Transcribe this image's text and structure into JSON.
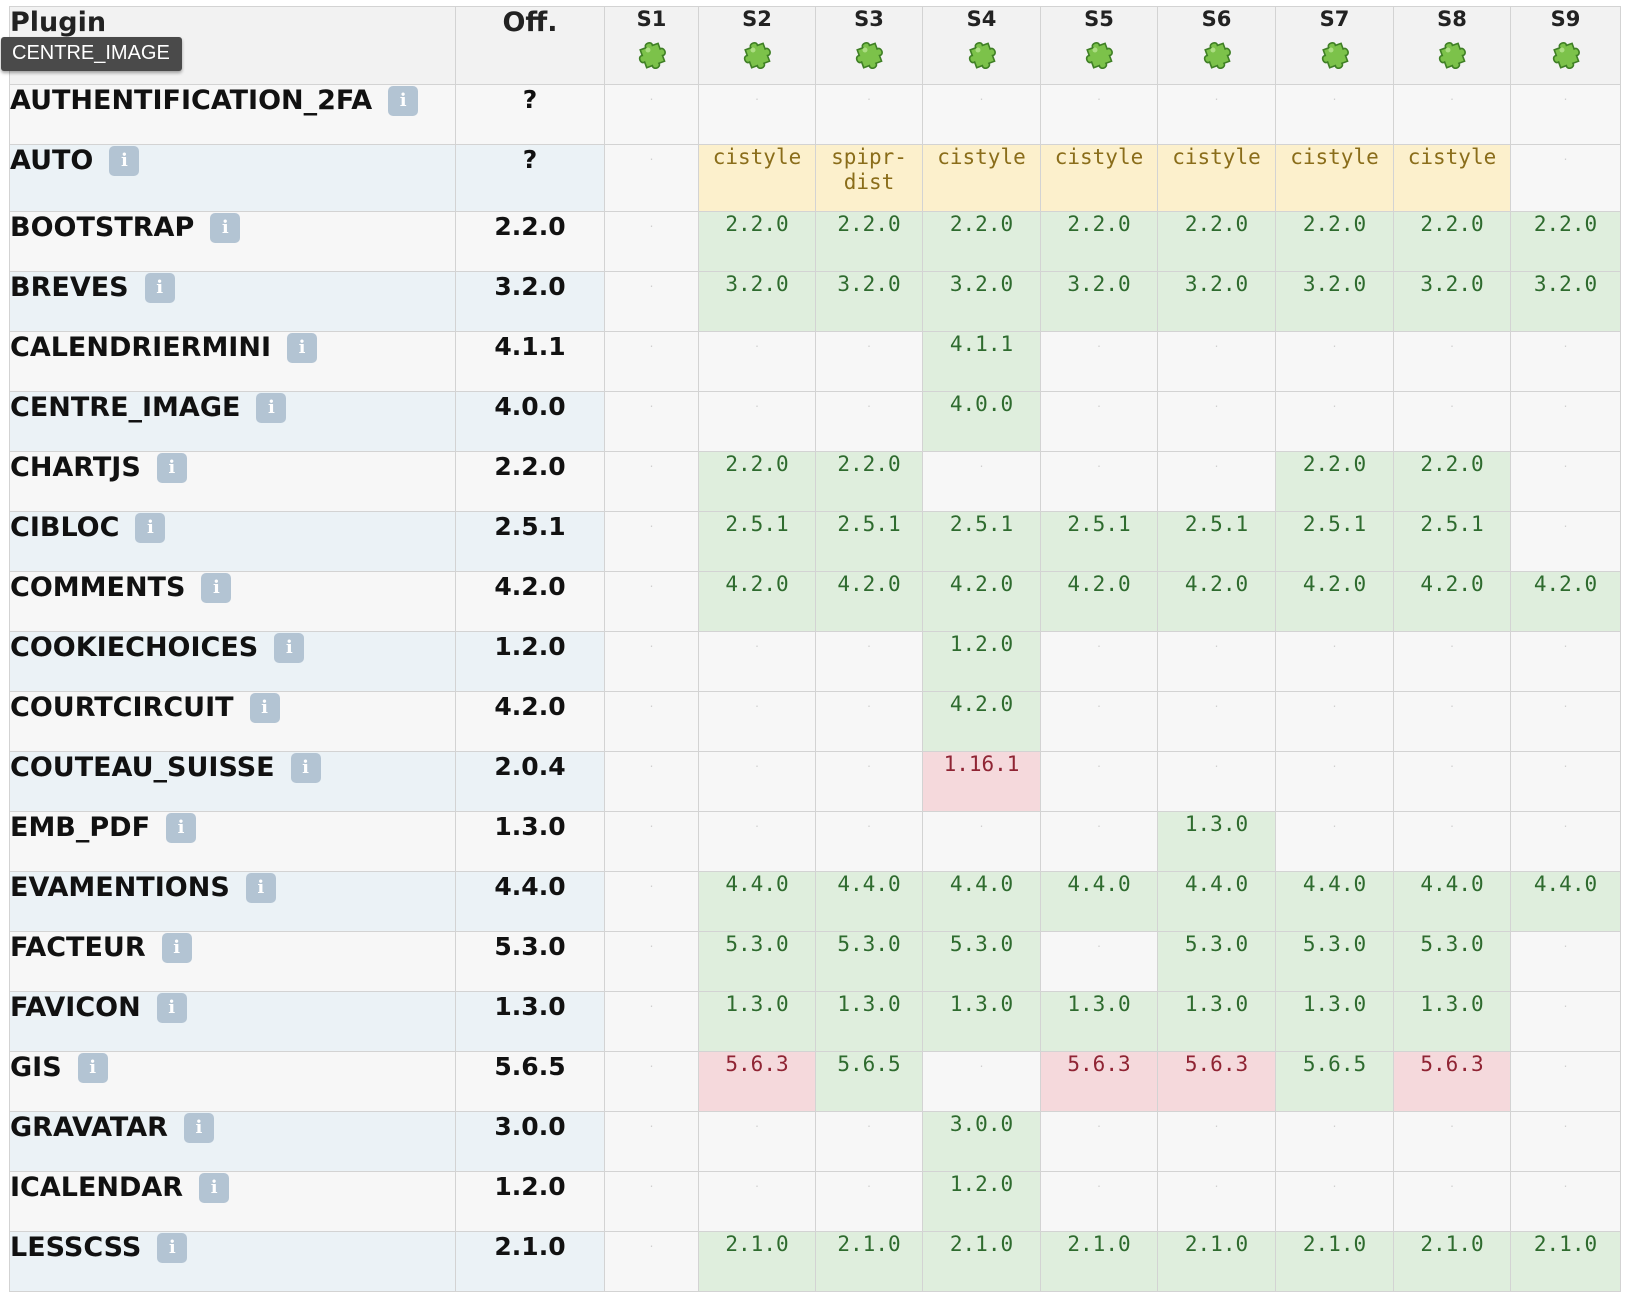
{
  "tooltip": "CENTRE_IMAGE",
  "header": {
    "plugin": "Plugin",
    "official": "Off.",
    "sites": [
      "S1",
      "S2",
      "S3",
      "S4",
      "S5",
      "S6",
      "S7",
      "S8",
      "S9"
    ],
    "site_icon": "puzzle-icon"
  },
  "info_icon": "i",
  "colors": {
    "up_to_date": "#dfeedd",
    "outdated": "#f5d9dc",
    "dist": "#fcf0cc",
    "even_row": "#ebf2f6",
    "tooltip_bg": "#4a4a4a"
  },
  "rows": [
    {
      "name": "AUTHENTIFICATION_2FA",
      "off": "?",
      "sites": [
        {
          "v": ".",
          "s": "empty"
        },
        {
          "v": ".",
          "s": "empty"
        },
        {
          "v": ".",
          "s": "empty"
        },
        {
          "v": ".",
          "s": "empty"
        },
        {
          "v": ".",
          "s": "empty"
        },
        {
          "v": ".",
          "s": "empty"
        },
        {
          "v": ".",
          "s": "empty"
        },
        {
          "v": ".",
          "s": "empty"
        },
        {
          "v": ".",
          "s": "empty"
        }
      ]
    },
    {
      "name": "AUTO",
      "off": "?",
      "sites": [
        {
          "v": ".",
          "s": "empty"
        },
        {
          "v": "cistyle",
          "s": "info"
        },
        {
          "v": "spipr-dist",
          "s": "info"
        },
        {
          "v": "cistyle",
          "s": "info"
        },
        {
          "v": "cistyle",
          "s": "info"
        },
        {
          "v": "cistyle",
          "s": "info"
        },
        {
          "v": "cistyle",
          "s": "info"
        },
        {
          "v": "cistyle",
          "s": "info"
        },
        {
          "v": ".",
          "s": "empty"
        }
      ]
    },
    {
      "name": "BOOTSTRAP",
      "off": "2.2.0",
      "sites": [
        {
          "v": ".",
          "s": "empty"
        },
        {
          "v": "2.2.0",
          "s": "ok"
        },
        {
          "v": "2.2.0",
          "s": "ok"
        },
        {
          "v": "2.2.0",
          "s": "ok"
        },
        {
          "v": "2.2.0",
          "s": "ok"
        },
        {
          "v": "2.2.0",
          "s": "ok"
        },
        {
          "v": "2.2.0",
          "s": "ok"
        },
        {
          "v": "2.2.0",
          "s": "ok"
        },
        {
          "v": "2.2.0",
          "s": "ok"
        }
      ]
    },
    {
      "name": "BREVES",
      "off": "3.2.0",
      "sites": [
        {
          "v": ".",
          "s": "empty"
        },
        {
          "v": "3.2.0",
          "s": "ok"
        },
        {
          "v": "3.2.0",
          "s": "ok"
        },
        {
          "v": "3.2.0",
          "s": "ok"
        },
        {
          "v": "3.2.0",
          "s": "ok"
        },
        {
          "v": "3.2.0",
          "s": "ok"
        },
        {
          "v": "3.2.0",
          "s": "ok"
        },
        {
          "v": "3.2.0",
          "s": "ok"
        },
        {
          "v": "3.2.0",
          "s": "ok"
        }
      ]
    },
    {
      "name": "CALENDRIERMINI",
      "off": "4.1.1",
      "sites": [
        {
          "v": ".",
          "s": "empty"
        },
        {
          "v": ".",
          "s": "empty"
        },
        {
          "v": ".",
          "s": "empty"
        },
        {
          "v": "4.1.1",
          "s": "ok"
        },
        {
          "v": ".",
          "s": "empty"
        },
        {
          "v": ".",
          "s": "empty"
        },
        {
          "v": ".",
          "s": "empty"
        },
        {
          "v": ".",
          "s": "empty"
        },
        {
          "v": ".",
          "s": "empty"
        }
      ]
    },
    {
      "name": "CENTRE_IMAGE",
      "off": "4.0.0",
      "sites": [
        {
          "v": ".",
          "s": "empty"
        },
        {
          "v": ".",
          "s": "empty"
        },
        {
          "v": ".",
          "s": "empty"
        },
        {
          "v": "4.0.0",
          "s": "ok"
        },
        {
          "v": ".",
          "s": "empty"
        },
        {
          "v": ".",
          "s": "empty"
        },
        {
          "v": ".",
          "s": "empty"
        },
        {
          "v": ".",
          "s": "empty"
        },
        {
          "v": ".",
          "s": "empty"
        }
      ]
    },
    {
      "name": "CHARTJS",
      "off": "2.2.0",
      "sites": [
        {
          "v": ".",
          "s": "empty"
        },
        {
          "v": "2.2.0",
          "s": "ok"
        },
        {
          "v": "2.2.0",
          "s": "ok"
        },
        {
          "v": ".",
          "s": "empty"
        },
        {
          "v": ".",
          "s": "empty"
        },
        {
          "v": ".",
          "s": "empty"
        },
        {
          "v": "2.2.0",
          "s": "ok"
        },
        {
          "v": "2.2.0",
          "s": "ok"
        },
        {
          "v": ".",
          "s": "empty"
        }
      ]
    },
    {
      "name": "CIBLOC",
      "off": "2.5.1",
      "sites": [
        {
          "v": ".",
          "s": "empty"
        },
        {
          "v": "2.5.1",
          "s": "ok"
        },
        {
          "v": "2.5.1",
          "s": "ok"
        },
        {
          "v": "2.5.1",
          "s": "ok"
        },
        {
          "v": "2.5.1",
          "s": "ok"
        },
        {
          "v": "2.5.1",
          "s": "ok"
        },
        {
          "v": "2.5.1",
          "s": "ok"
        },
        {
          "v": "2.5.1",
          "s": "ok"
        },
        {
          "v": ".",
          "s": "empty"
        }
      ]
    },
    {
      "name": "COMMENTS",
      "off": "4.2.0",
      "sites": [
        {
          "v": ".",
          "s": "empty"
        },
        {
          "v": "4.2.0",
          "s": "ok"
        },
        {
          "v": "4.2.0",
          "s": "ok"
        },
        {
          "v": "4.2.0",
          "s": "ok"
        },
        {
          "v": "4.2.0",
          "s": "ok"
        },
        {
          "v": "4.2.0",
          "s": "ok"
        },
        {
          "v": "4.2.0",
          "s": "ok"
        },
        {
          "v": "4.2.0",
          "s": "ok"
        },
        {
          "v": "4.2.0",
          "s": "ok"
        }
      ]
    },
    {
      "name": "COOKIECHOICES",
      "off": "1.2.0",
      "sites": [
        {
          "v": ".",
          "s": "empty"
        },
        {
          "v": ".",
          "s": "empty"
        },
        {
          "v": ".",
          "s": "empty"
        },
        {
          "v": "1.2.0",
          "s": "ok"
        },
        {
          "v": ".",
          "s": "empty"
        },
        {
          "v": ".",
          "s": "empty"
        },
        {
          "v": ".",
          "s": "empty"
        },
        {
          "v": ".",
          "s": "empty"
        },
        {
          "v": ".",
          "s": "empty"
        }
      ]
    },
    {
      "name": "COURTCIRCUIT",
      "off": "4.2.0",
      "sites": [
        {
          "v": ".",
          "s": "empty"
        },
        {
          "v": ".",
          "s": "empty"
        },
        {
          "v": ".",
          "s": "empty"
        },
        {
          "v": "4.2.0",
          "s": "ok"
        },
        {
          "v": ".",
          "s": "empty"
        },
        {
          "v": ".",
          "s": "empty"
        },
        {
          "v": ".",
          "s": "empty"
        },
        {
          "v": ".",
          "s": "empty"
        },
        {
          "v": ".",
          "s": "empty"
        }
      ]
    },
    {
      "name": "COUTEAU_SUISSE",
      "off": "2.0.4",
      "sites": [
        {
          "v": ".",
          "s": "empty"
        },
        {
          "v": ".",
          "s": "empty"
        },
        {
          "v": ".",
          "s": "empty"
        },
        {
          "v": "1.16.1",
          "s": "old"
        },
        {
          "v": ".",
          "s": "empty"
        },
        {
          "v": ".",
          "s": "empty"
        },
        {
          "v": ".",
          "s": "empty"
        },
        {
          "v": ".",
          "s": "empty"
        },
        {
          "v": ".",
          "s": "empty"
        }
      ]
    },
    {
      "name": "EMB_PDF",
      "off": "1.3.0",
      "sites": [
        {
          "v": ".",
          "s": "empty"
        },
        {
          "v": ".",
          "s": "empty"
        },
        {
          "v": ".",
          "s": "empty"
        },
        {
          "v": ".",
          "s": "empty"
        },
        {
          "v": ".",
          "s": "empty"
        },
        {
          "v": "1.3.0",
          "s": "ok"
        },
        {
          "v": ".",
          "s": "empty"
        },
        {
          "v": ".",
          "s": "empty"
        },
        {
          "v": ".",
          "s": "empty"
        }
      ]
    },
    {
      "name": "EVAMENTIONS",
      "off": "4.4.0",
      "sites": [
        {
          "v": ".",
          "s": "empty"
        },
        {
          "v": "4.4.0",
          "s": "ok"
        },
        {
          "v": "4.4.0",
          "s": "ok"
        },
        {
          "v": "4.4.0",
          "s": "ok"
        },
        {
          "v": "4.4.0",
          "s": "ok"
        },
        {
          "v": "4.4.0",
          "s": "ok"
        },
        {
          "v": "4.4.0",
          "s": "ok"
        },
        {
          "v": "4.4.0",
          "s": "ok"
        },
        {
          "v": "4.4.0",
          "s": "ok"
        }
      ]
    },
    {
      "name": "FACTEUR",
      "off": "5.3.0",
      "sites": [
        {
          "v": ".",
          "s": "empty"
        },
        {
          "v": "5.3.0",
          "s": "ok"
        },
        {
          "v": "5.3.0",
          "s": "ok"
        },
        {
          "v": "5.3.0",
          "s": "ok"
        },
        {
          "v": ".",
          "s": "empty"
        },
        {
          "v": "5.3.0",
          "s": "ok"
        },
        {
          "v": "5.3.0",
          "s": "ok"
        },
        {
          "v": "5.3.0",
          "s": "ok"
        },
        {
          "v": ".",
          "s": "empty"
        }
      ]
    },
    {
      "name": "FAVICON",
      "off": "1.3.0",
      "sites": [
        {
          "v": ".",
          "s": "empty"
        },
        {
          "v": "1.3.0",
          "s": "ok"
        },
        {
          "v": "1.3.0",
          "s": "ok"
        },
        {
          "v": "1.3.0",
          "s": "ok"
        },
        {
          "v": "1.3.0",
          "s": "ok"
        },
        {
          "v": "1.3.0",
          "s": "ok"
        },
        {
          "v": "1.3.0",
          "s": "ok"
        },
        {
          "v": "1.3.0",
          "s": "ok"
        },
        {
          "v": ".",
          "s": "empty"
        }
      ]
    },
    {
      "name": "GIS",
      "off": "5.6.5",
      "sites": [
        {
          "v": ".",
          "s": "empty"
        },
        {
          "v": "5.6.3",
          "s": "old"
        },
        {
          "v": "5.6.5",
          "s": "ok"
        },
        {
          "v": ".",
          "s": "empty"
        },
        {
          "v": "5.6.3",
          "s": "old"
        },
        {
          "v": "5.6.3",
          "s": "old"
        },
        {
          "v": "5.6.5",
          "s": "ok"
        },
        {
          "v": "5.6.3",
          "s": "old"
        },
        {
          "v": ".",
          "s": "empty"
        }
      ]
    },
    {
      "name": "GRAVATAR",
      "off": "3.0.0",
      "sites": [
        {
          "v": ".",
          "s": "empty"
        },
        {
          "v": ".",
          "s": "empty"
        },
        {
          "v": ".",
          "s": "empty"
        },
        {
          "v": "3.0.0",
          "s": "ok"
        },
        {
          "v": ".",
          "s": "empty"
        },
        {
          "v": ".",
          "s": "empty"
        },
        {
          "v": ".",
          "s": "empty"
        },
        {
          "v": ".",
          "s": "empty"
        },
        {
          "v": ".",
          "s": "empty"
        }
      ]
    },
    {
      "name": "ICALENDAR",
      "off": "1.2.0",
      "sites": [
        {
          "v": ".",
          "s": "empty"
        },
        {
          "v": ".",
          "s": "empty"
        },
        {
          "v": ".",
          "s": "empty"
        },
        {
          "v": "1.2.0",
          "s": "ok"
        },
        {
          "v": ".",
          "s": "empty"
        },
        {
          "v": ".",
          "s": "empty"
        },
        {
          "v": ".",
          "s": "empty"
        },
        {
          "v": ".",
          "s": "empty"
        },
        {
          "v": ".",
          "s": "empty"
        }
      ]
    },
    {
      "name": "LESSCSS",
      "off": "2.1.0",
      "sites": [
        {
          "v": ".",
          "s": "empty"
        },
        {
          "v": "2.1.0",
          "s": "ok"
        },
        {
          "v": "2.1.0",
          "s": "ok"
        },
        {
          "v": "2.1.0",
          "s": "ok"
        },
        {
          "v": "2.1.0",
          "s": "ok"
        },
        {
          "v": "2.1.0",
          "s": "ok"
        },
        {
          "v": "2.1.0",
          "s": "ok"
        },
        {
          "v": "2.1.0",
          "s": "ok"
        },
        {
          "v": "2.1.0",
          "s": "ok"
        }
      ]
    }
  ]
}
